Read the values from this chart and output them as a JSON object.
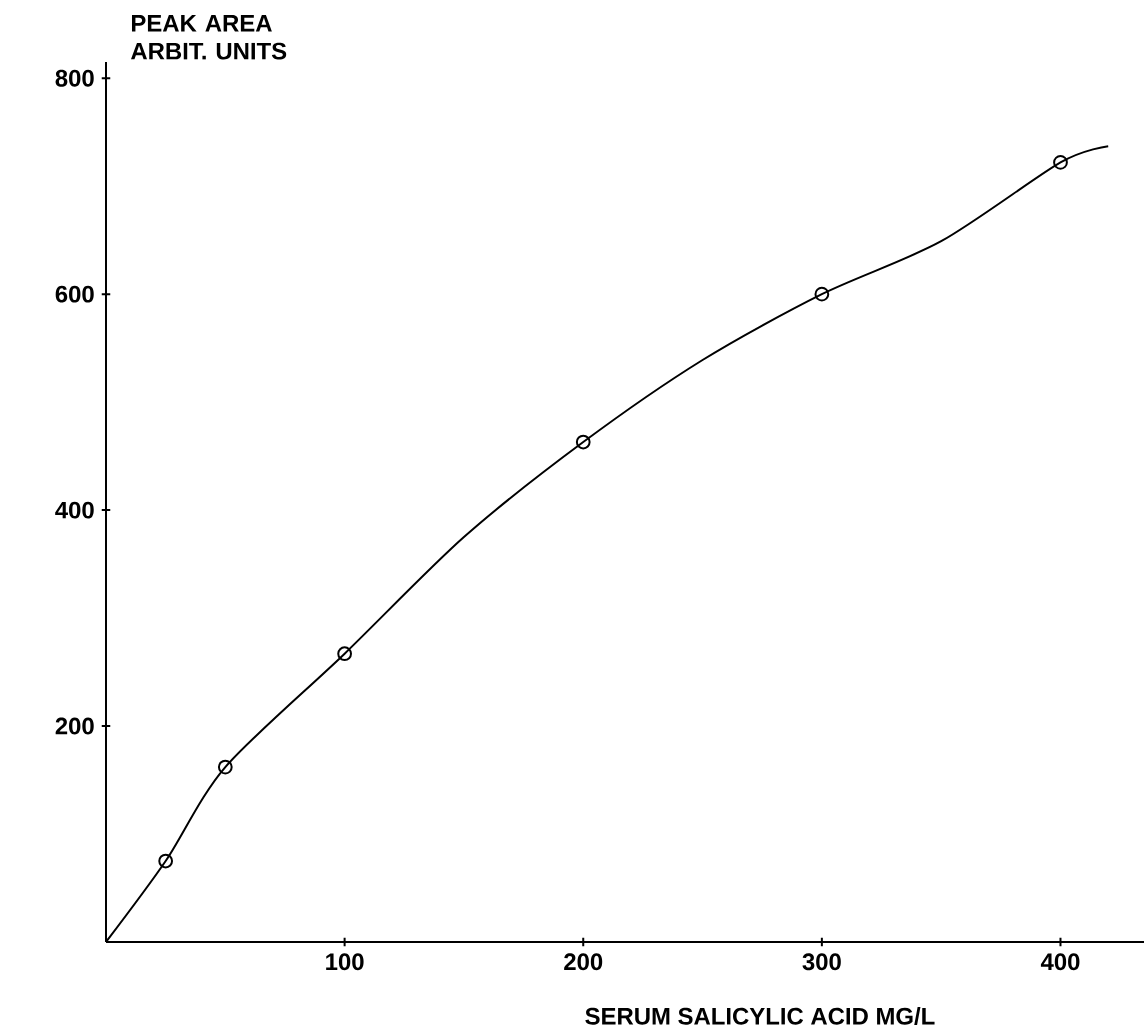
{
  "chart_data": {
    "type": "scatter",
    "xlabel": "SERUM SALICYLIC ACID MG/L",
    "ylabel": "PEAK AREA\nARBIT. UNITS",
    "xlim": [
      0,
      435
    ],
    "ylim": [
      0,
      815
    ],
    "xticks": [
      100,
      200,
      300,
      400
    ],
    "yticks": [
      200,
      400,
      600,
      800
    ],
    "grid": false,
    "series": [
      {
        "color": "#000000",
        "marker": "circle",
        "x": [
          25,
          50,
          100,
          200,
          300,
          400
        ],
        "values": [
          75,
          162,
          267,
          463,
          600,
          722
        ]
      },
      {
        "type": "line",
        "color": "#000000",
        "marker": "none",
        "line_style": "solid",
        "x": [
          0,
          25,
          50,
          100,
          150,
          200,
          250,
          300,
          350,
          400,
          420
        ],
        "values": [
          0,
          75,
          162,
          267,
          375,
          463,
          539,
          600,
          649,
          722,
          737
        ]
      }
    ]
  }
}
